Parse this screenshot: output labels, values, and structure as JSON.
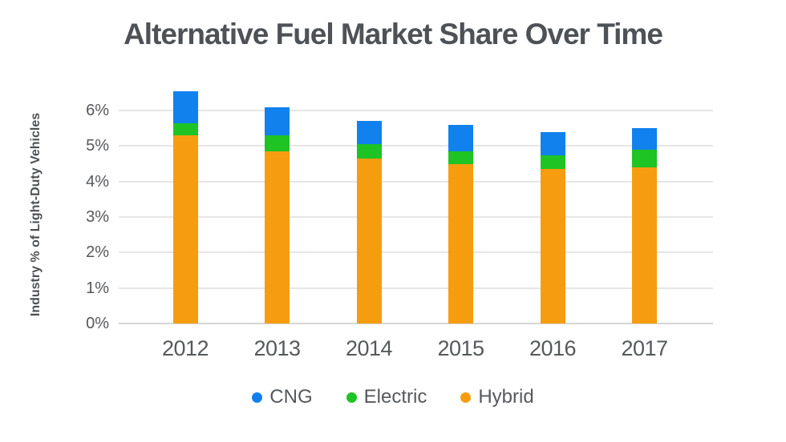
{
  "title": "Alternative Fuel Market Share Over Time",
  "y_axis_title": "Industry % of Light-Duty Vehicles",
  "colors": {
    "cng": "#1181ee",
    "electric": "#1dc423",
    "hybrid": "#f59d0f",
    "grid": "#e6e6e6",
    "text": "#56585b",
    "title_text": "#4e5155"
  },
  "legend": {
    "items": [
      {
        "label": "CNG",
        "color": "#1181ee"
      },
      {
        "label": "Electric",
        "color": "#1dc423"
      },
      {
        "label": "Hybrid",
        "color": "#f59d0f"
      }
    ]
  },
  "chart_data": {
    "type": "bar",
    "stacked": true,
    "title": "Alternative Fuel Market Share Over Time",
    "ylabel": "Industry % of Light-Duty Vehicles",
    "xlabel": "",
    "categories": [
      "2012",
      "2013",
      "2014",
      "2015",
      "2016",
      "2017"
    ],
    "series": [
      {
        "name": "Hybrid",
        "color": "#f59d0f",
        "values": [
          5.3,
          4.85,
          4.65,
          4.5,
          4.35,
          4.4
        ]
      },
      {
        "name": "Electric",
        "color": "#1dc423",
        "values": [
          0.35,
          0.45,
          0.4,
          0.35,
          0.4,
          0.5
        ]
      },
      {
        "name": "CNG",
        "color": "#1181ee",
        "values": [
          0.9,
          0.8,
          0.65,
          0.75,
          0.65,
          0.6
        ]
      }
    ],
    "stack_totals": [
      6.55,
      6.1,
      5.7,
      5.6,
      5.4,
      5.5
    ],
    "yticks": [
      "0%",
      "1%",
      "2%",
      "3%",
      "4%",
      "5%",
      "6%"
    ],
    "ytick_values": [
      0,
      1,
      2,
      3,
      4,
      5,
      6
    ],
    "ylim": [
      0,
      6.6
    ],
    "grid": true,
    "legend_position": "bottom",
    "legend_order": [
      "CNG",
      "Electric",
      "Hybrid"
    ]
  }
}
